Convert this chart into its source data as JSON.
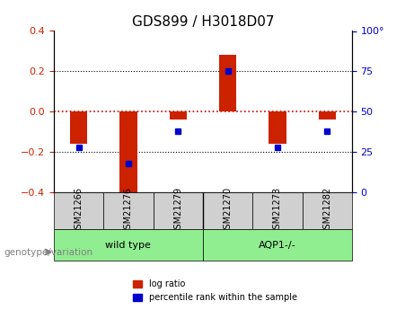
{
  "title": "GDS899 / H3018D07",
  "samples": [
    "GSM21266",
    "GSM21276",
    "GSM21279",
    "GSM21270",
    "GSM21273",
    "GSM21282"
  ],
  "log_ratio": [
    -0.16,
    -0.43,
    -0.04,
    0.28,
    -0.16,
    -0.04
  ],
  "percentile_rank": [
    28,
    18,
    38,
    75,
    28,
    38
  ],
  "groups": [
    {
      "label": "wild type",
      "indices": [
        0,
        1,
        2
      ],
      "color": "#90ee90"
    },
    {
      "label": "AQP1-/-",
      "indices": [
        3,
        4,
        5
      ],
      "color": "#90ee90"
    }
  ],
  "group_divider": 2.5,
  "bar_color_red": "#cc2200",
  "bar_color_blue": "#0000cc",
  "zero_line_color": "#cc0000",
  "ylim": [
    -0.4,
    0.4
  ],
  "ylim_right": [
    0,
    100
  ],
  "yticks_left": [
    -0.4,
    -0.2,
    0.0,
    0.2,
    0.4
  ],
  "yticks_right": [
    0,
    25,
    50,
    75,
    100
  ],
  "grid_lines": [
    -0.2,
    0.0,
    0.2
  ],
  "bar_width": 0.35,
  "bg_color": "#f0f0f0",
  "label_area_color": "#d0d0d0",
  "genotype_label": "genotype/variation",
  "legend_log_ratio": "log ratio",
  "legend_percentile": "percentile rank within the sample"
}
